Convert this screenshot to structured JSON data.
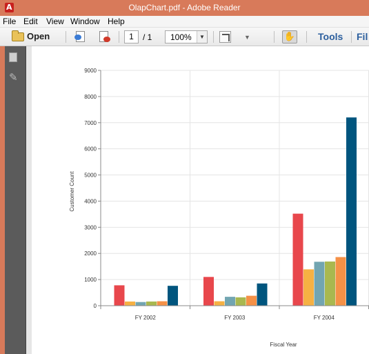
{
  "window": {
    "title": "OlapChart.pdf - Adobe Reader",
    "app_icon_glyph": "A"
  },
  "menu": {
    "items": [
      "File",
      "Edit",
      "View",
      "Window",
      "Help"
    ]
  },
  "toolbar": {
    "open_label": "Open",
    "page_current": "1",
    "page_total": "/ 1",
    "zoom": "100%",
    "tools_label": "Tools",
    "fill_label": "Fil",
    "icons": [
      "folder-icon",
      "save-icon",
      "print-icon",
      "fit-page-icon",
      "more-tools-icon",
      "hand-tool-icon"
    ]
  },
  "navpane": {
    "icons": [
      "page-thumbnails-icon",
      "attachments-icon"
    ]
  },
  "chart_data": {
    "type": "bar",
    "categories": [
      "FY 2002",
      "FY 2003",
      "FY 2004"
    ],
    "series": [
      {
        "color": "#e8474c",
        "values": [
          780,
          1100,
          3520
        ]
      },
      {
        "color": "#f6b143",
        "values": [
          160,
          170,
          1390
        ]
      },
      {
        "color": "#72a5b1",
        "values": [
          140,
          340,
          1680
        ]
      },
      {
        "color": "#a9b84f",
        "values": [
          160,
          320,
          1690
        ]
      },
      {
        "color": "#f59147",
        "values": [
          170,
          380,
          1860
        ]
      },
      {
        "color": "#00557e",
        "values": [
          760,
          850,
          7200
        ]
      }
    ],
    "xlabel": "Fiscal Year",
    "ylabel": "Customer Count",
    "ylim": [
      0,
      9000
    ],
    "yticks": [
      "0",
      "1000",
      "2000",
      "3000",
      "4000",
      "5000",
      "6000",
      "7000",
      "8000",
      "9000"
    ],
    "grid": true
  }
}
